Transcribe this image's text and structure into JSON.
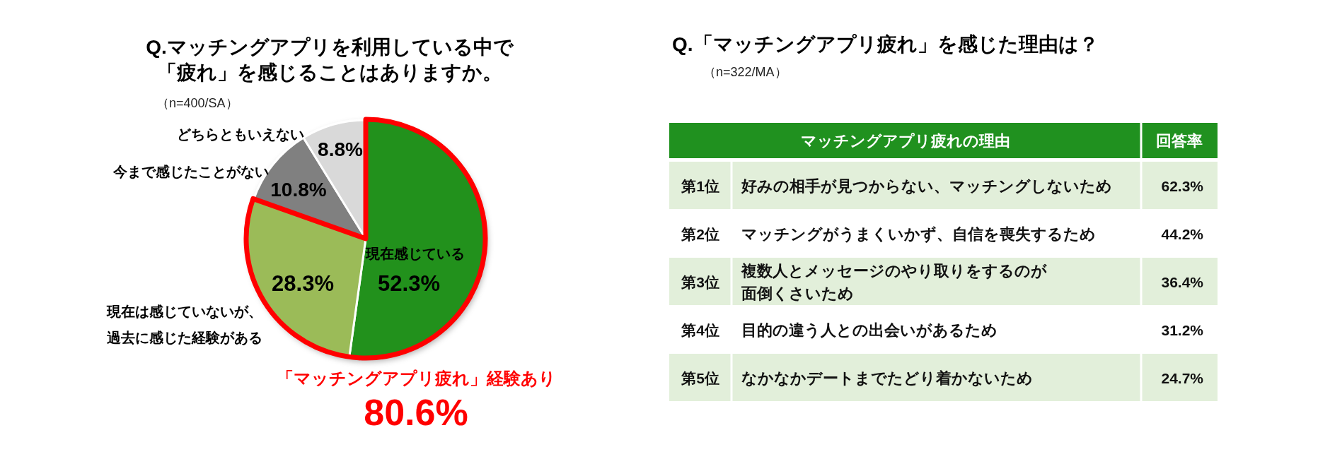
{
  "chart_data": [
    {
      "type": "pie",
      "title": "Q.マッチングアプリを利用している中で「疲れ」を感じることはありますか。",
      "subtitle": "（n=400/SA）",
      "categories": [
        "現在感じている",
        "現在は感じていないが、過去に感じた経験がある",
        "今まで感じたことがない",
        "どちらともいえない"
      ],
      "values": [
        52.3,
        28.3,
        10.8,
        8.8
      ],
      "colors": [
        "#20911f",
        "#9bbb59",
        "#808080",
        "#d9d9d9"
      ],
      "value_labels": [
        "52.3%",
        "28.3%",
        "10.8%",
        "8.8%"
      ],
      "annotations": [
        "「マッチングアプリ疲れ」経験あり",
        "80.6%"
      ]
    },
    {
      "type": "other",
      "title": "Q.「マッチングアプリ疲れ」を感じた理由は？",
      "subtitle": "（n=322/MA）",
      "xlabel": "マッチングアプリ疲れの理由",
      "ylabel": "回答率",
      "y_categories": [
        "第1位",
        "第2位",
        "第3位",
        "第4位",
        "第5位"
      ],
      "categories": [
        "好みの相手が見つからない、マッチングしないため",
        "マッチングがうまくいかず、自信を喪失するため",
        "複数人とメッセージのやり取りをするのが面倒くさいため",
        "目的の違う人との出会いがあるため",
        "なかなかデートまでたどり着かないため"
      ],
      "value_labels": [
        "62.3%",
        "44.2%",
        "36.4%",
        "31.2%",
        "24.7%"
      ]
    }
  ]
}
